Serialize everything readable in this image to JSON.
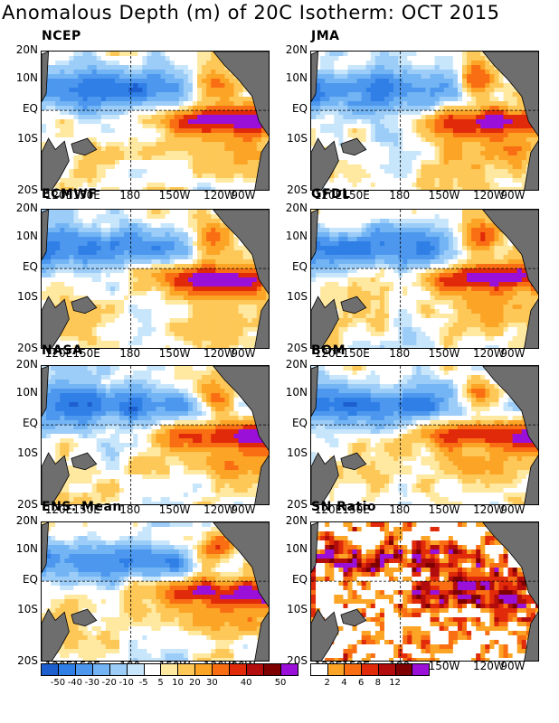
{
  "title": "Anomalous Depth (m) of 20C Isotherm: OCT 2015",
  "lat_labels": [
    "20N",
    "10N",
    "EQ",
    "10S",
    "20S"
  ],
  "lon_labels": [
    "120E",
    "150E",
    "180",
    "150W",
    "120W",
    "90W"
  ],
  "panels": [
    {
      "name": "NCEP",
      "type": "depth"
    },
    {
      "name": "JMA",
      "type": "depth"
    },
    {
      "name": "ECMWF",
      "type": "depth"
    },
    {
      "name": "GFDL",
      "type": "depth"
    },
    {
      "name": "NASA",
      "type": "depth"
    },
    {
      "name": "BOM",
      "type": "depth"
    },
    {
      "name": "ENS. Mean",
      "type": "depth"
    },
    {
      "name": "SN Ratio",
      "type": "sn"
    }
  ],
  "colorbar_depth": {
    "colors": [
      "#1e5fd0",
      "#2f7fe6",
      "#4d98ee",
      "#72b4f4",
      "#9cccf8",
      "#c8e6fb",
      "#ffffff",
      "#ffe8a0",
      "#fdc857",
      "#fca425",
      "#f96e13",
      "#e02a0a",
      "#b30c0c",
      "#7f0000",
      "#9b10d8"
    ],
    "labels": [
      "-50",
      "-40",
      "-30",
      "-20",
      "-10",
      "-5",
      "5",
      "10",
      "20",
      "30",
      "40",
      "50"
    ]
  },
  "colorbar_sn": {
    "colors": [
      "#ffffff",
      "#fca425",
      "#f96e13",
      "#e02a0a",
      "#b30c0c",
      "#7f0000",
      "#9b10d8"
    ],
    "labels": [
      "2",
      "4",
      "6",
      "8",
      "12"
    ]
  },
  "chart_data": {
    "type": "heatmap",
    "title": "Anomalous Depth (m) of 20C Isotherm: OCT 2015",
    "x_ticks": [
      "120E",
      "150E",
      "180",
      "150W",
      "120W",
      "90W"
    ],
    "y_ticks": [
      "20N",
      "10N",
      "EQ",
      "10S",
      "20S"
    ],
    "depth_levels_m": [
      -50,
      -40,
      -30,
      -20,
      -10,
      -5,
      5,
      10,
      20,
      30,
      40,
      50
    ],
    "sn_levels": [
      2,
      4,
      6,
      8,
      12
    ],
    "series": [
      {
        "name": "NCEP"
      },
      {
        "name": "JMA"
      },
      {
        "name": "ECMWF"
      },
      {
        "name": "GFDL"
      },
      {
        "name": "NASA"
      },
      {
        "name": "BOM"
      },
      {
        "name": "ENS. Mean"
      },
      {
        "name": "SN Ratio"
      }
    ],
    "pattern": [
      {
        "region": "north of equator, western/central Pacific",
        "anomaly_m": "-30 to -50"
      },
      {
        "region": "equatorial eastern Pacific 150W-80W",
        "anomaly_m": "30 to 50"
      },
      {
        "region": "Central America coast near 10N",
        "anomaly_m": "30 to 50"
      },
      {
        "region": "south-western Pacific near 10S",
        "anomaly_m": "-5 to 5"
      }
    ]
  }
}
